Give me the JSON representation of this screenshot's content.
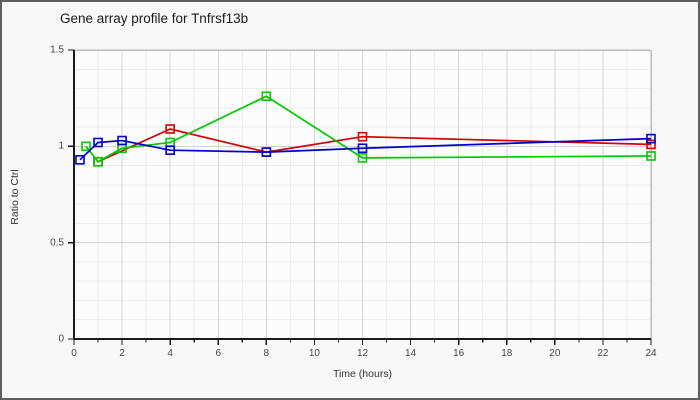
{
  "window": {
    "title": "Gene array profile for Tnfrsf13b"
  },
  "chart_data": {
    "type": "line",
    "title": "Gene array profile for Tnfrsf13b",
    "xlabel": "Time (hours)",
    "ylabel": "Ratio to Ctrl",
    "xlim": [
      0,
      24
    ],
    "ylim": [
      0,
      1.5
    ],
    "x_major_ticks": [
      0,
      2,
      4,
      6,
      8,
      10,
      12,
      14,
      16,
      18,
      20,
      22,
      24
    ],
    "x_minor_step": 1,
    "y_ticks": [
      0,
      0.5,
      1,
      1.5
    ],
    "y_tick_labels": [
      "0",
      "0.5",
      "1",
      "1.5"
    ],
    "y_minor_step": 0.1,
    "grid": true,
    "legend": "none",
    "marker": "open-square",
    "series": [
      {
        "name": "series-red",
        "color": "#d40000",
        "x": [
          1,
          4,
          8,
          12,
          24
        ],
        "y": [
          0.92,
          1.09,
          0.97,
          1.05,
          1.01
        ]
      },
      {
        "name": "series-green",
        "color": "#00c800",
        "x": [
          0.5,
          1,
          2,
          4,
          8,
          12,
          24
        ],
        "y": [
          1.0,
          0.92,
          0.99,
          1.02,
          1.26,
          0.94,
          0.95
        ]
      },
      {
        "name": "series-blue",
        "color": "#0000cc",
        "x": [
          0.25,
          1,
          2,
          4,
          8,
          12,
          24
        ],
        "y": [
          0.93,
          1.02,
          1.03,
          0.98,
          0.97,
          0.99,
          1.04
        ]
      }
    ],
    "colors": {
      "page_background": "#f8f8f8",
      "plot_background": "#fcfcfc",
      "minor_grid": "#ececec",
      "major_grid": "#d4d4d4",
      "frame": "#bdbdbd",
      "axis": "#1a1a1a"
    }
  }
}
